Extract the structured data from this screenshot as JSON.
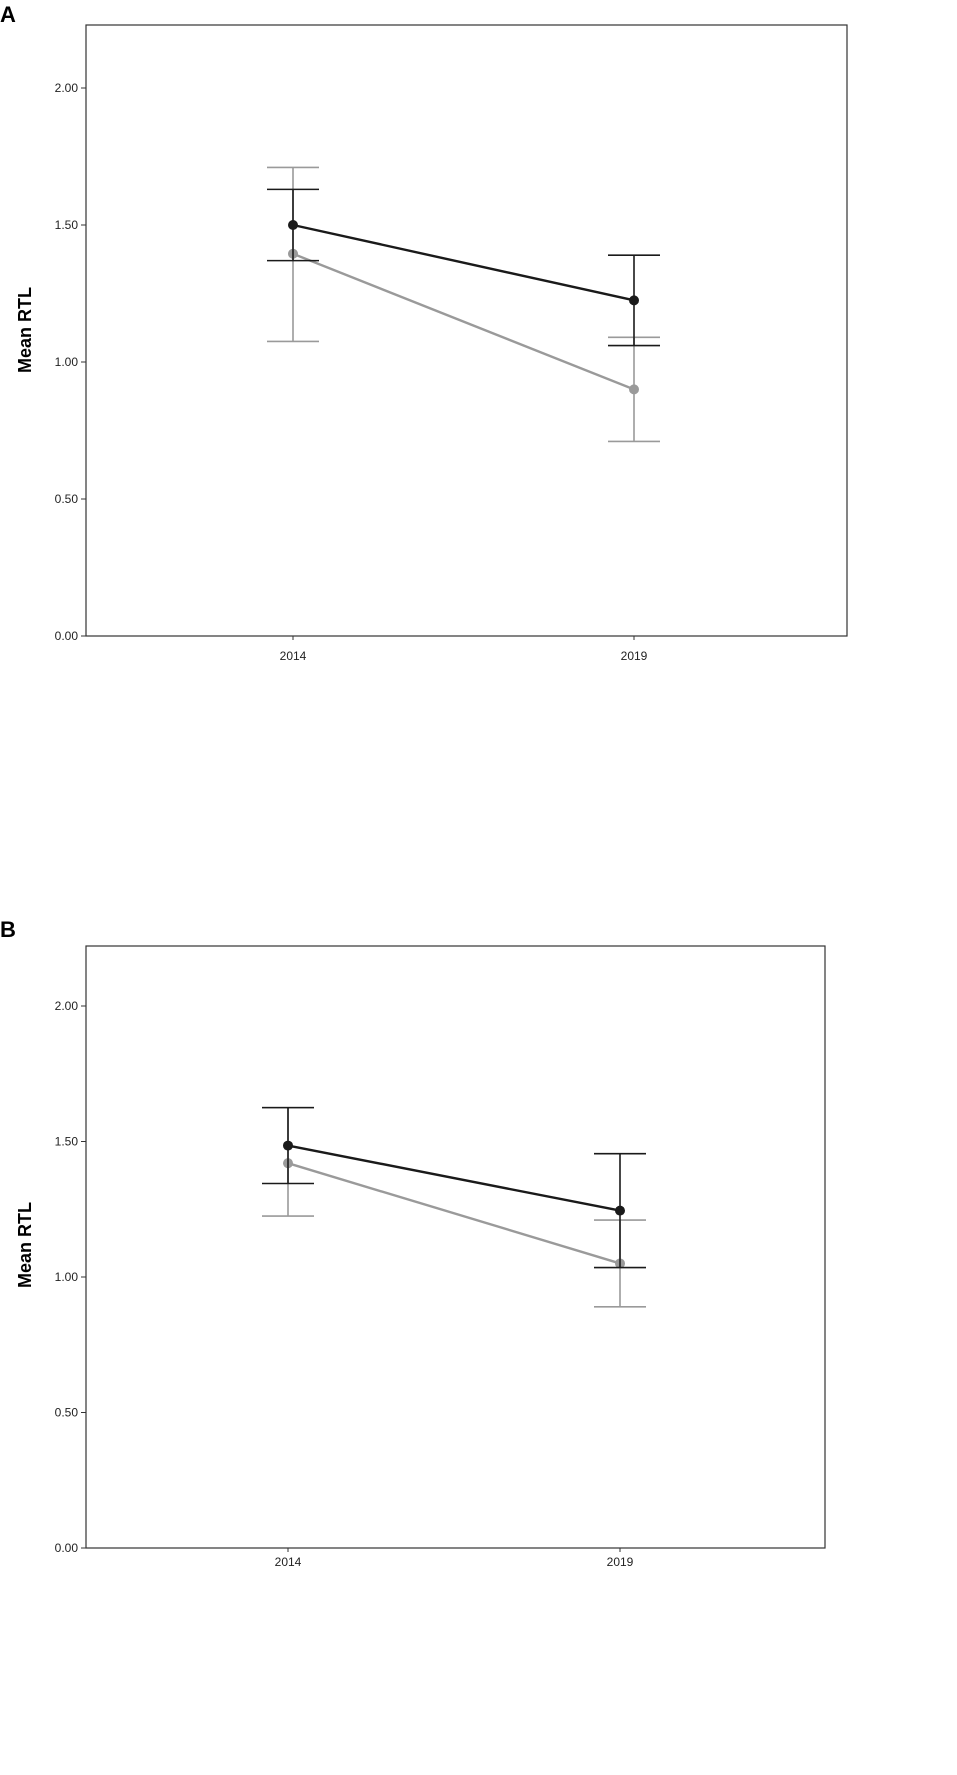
{
  "chart_data": [
    {
      "panel_label": "A",
      "type": "line",
      "error_bars": true,
      "categories": [
        "2014",
        "2019"
      ],
      "ylabel": "Mean RTL",
      "xlabel": "",
      "ylim": [
        0,
        2.2
      ],
      "yticks": [
        "0.00",
        "0.50",
        "1.00",
        "1.50",
        "2.00"
      ],
      "grid": false,
      "series": [
        {
          "color": "#1a1a1a",
          "values": [
            1.5,
            1.225
          ],
          "error_low": [
            1.37,
            1.06
          ],
          "error_high": [
            1.63,
            1.39
          ]
        },
        {
          "color": "#9a9a9a",
          "values": [
            1.395,
            0.9
          ],
          "error_low": [
            1.075,
            0.71
          ],
          "error_high": [
            1.71,
            1.09
          ]
        }
      ]
    },
    {
      "panel_label": "B",
      "type": "line",
      "error_bars": true,
      "categories": [
        "2014",
        "2019"
      ],
      "ylabel": "Mean RTL",
      "xlabel": "",
      "ylim": [
        0,
        2.2
      ],
      "yticks": [
        "0.00",
        "0.50",
        "1.00",
        "1.50",
        "2.00"
      ],
      "grid": false,
      "series": [
        {
          "color": "#1a1a1a",
          "values": [
            1.485,
            1.245
          ],
          "error_low": [
            1.345,
            1.035
          ],
          "error_high": [
            1.625,
            1.455
          ]
        },
        {
          "color": "#9a9a9a",
          "values": [
            1.42,
            1.05
          ],
          "error_low": [
            1.225,
            0.89
          ],
          "error_high": [
            1.625,
            1.21
          ]
        }
      ]
    }
  ]
}
